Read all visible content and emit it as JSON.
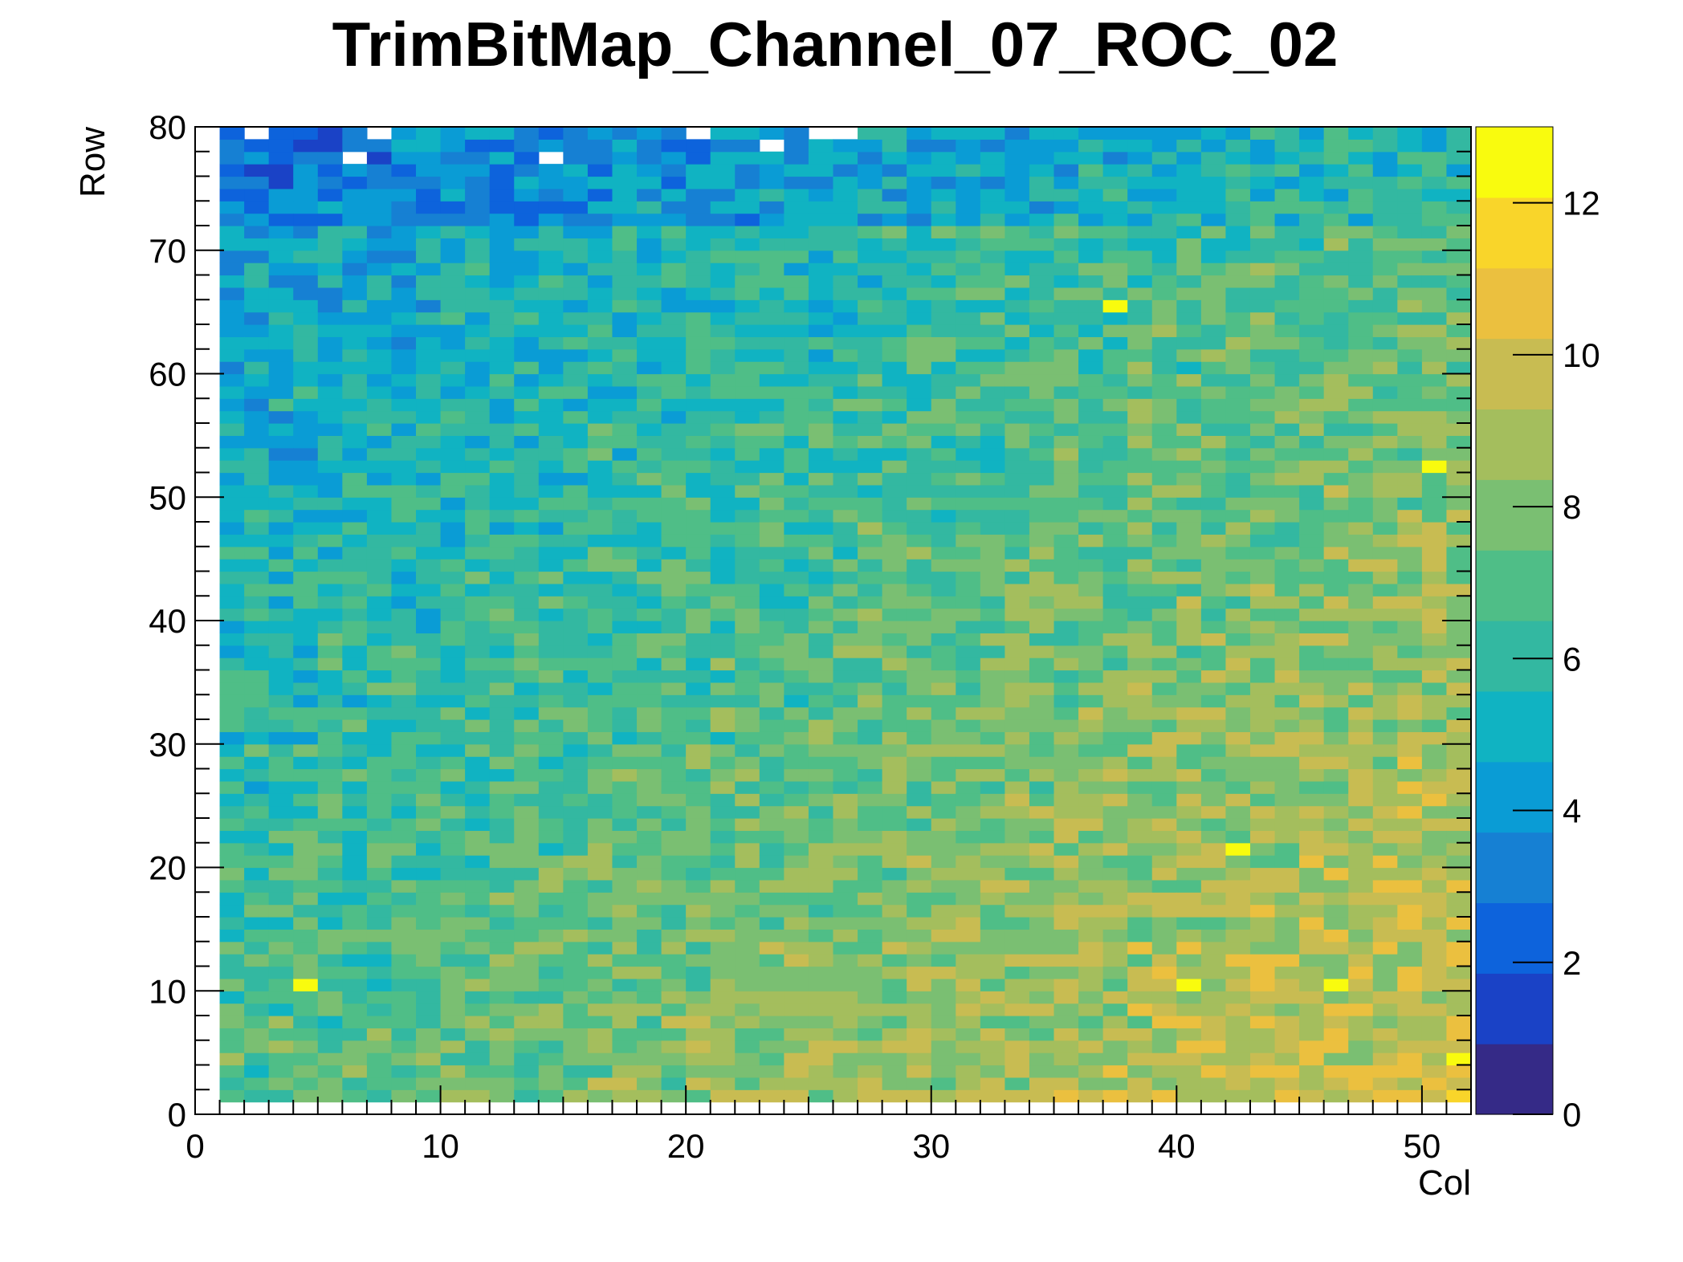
{
  "chart_data": {
    "type": "heatmap",
    "title": "TrimBitMap_Channel_07_ROC_02",
    "xlabel": "Col",
    "ylabel": "Row",
    "xlim": [
      0,
      52
    ],
    "ylim": [
      0,
      80
    ],
    "x_ticks": [
      "0",
      "10",
      "20",
      "30",
      "40",
      "50"
    ],
    "y_ticks": [
      "0",
      "10",
      "20",
      "30",
      "40",
      "50",
      "60",
      "70",
      "80"
    ],
    "colorbar": {
      "range": [
        0,
        13
      ],
      "ticks": [
        "0",
        "2",
        "4",
        "6",
        "8",
        "10",
        "12"
      ]
    },
    "value_summary": {
      "typical_value_low_cols_high_rows": 4,
      "typical_value_high_cols_low_rows": 10,
      "empty_bins_near_top": [
        [
          2,
          79
        ],
        [
          7,
          79
        ],
        [
          6,
          77
        ],
        [
          14,
          77
        ],
        [
          20,
          79
        ],
        [
          23,
          78
        ],
        [
          25,
          79
        ],
        [
          26,
          79
        ]
      ],
      "bright_spots_value_12_to_13": [
        [
          4,
          10
        ],
        [
          37,
          65
        ],
        [
          42,
          21
        ],
        [
          50,
          52
        ],
        [
          51,
          4
        ],
        [
          46,
          10
        ],
        [
          40,
          10
        ]
      ]
    },
    "colormap": [
      "#352a87",
      "#1a42c6",
      "#0d63dc",
      "#1680d3",
      "#0a9cd5",
      "#10b3c2",
      "#33b8a1",
      "#4fbe87",
      "#7abf72",
      "#a4be5d",
      "#c8bc52",
      "#ebc03f",
      "#f9d52a",
      "#f9fb0e"
    ]
  }
}
